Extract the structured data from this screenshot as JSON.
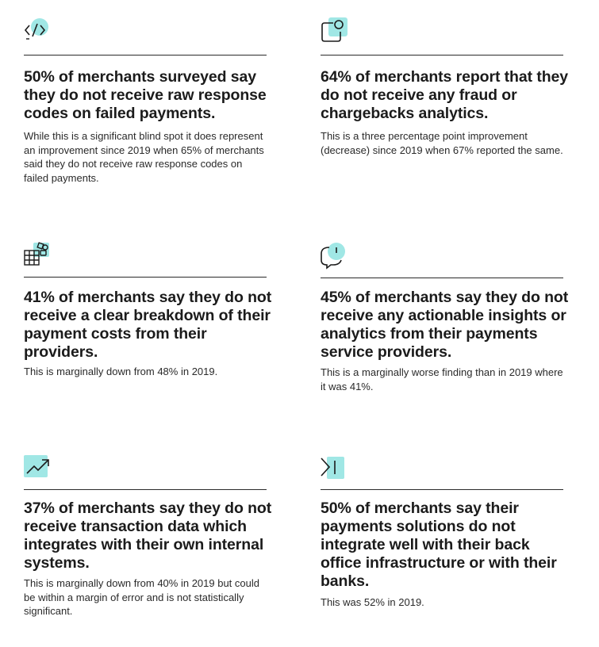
{
  "cards": [
    {
      "icon": "code-icon",
      "headline": "50% of merchants surveyed say they do not receive raw response codes on failed payments.",
      "body": "While this is a significant blind spot it does represent an improvement since 2019 when 65% of merchants said they do not receive raw response codes on failed payments."
    },
    {
      "icon": "notification-window-icon",
      "headline": "64% of merchants report that they do not receive any fraud or chargebacks analytics.",
      "body": "This is a three percentage point improvement (decrease) since 2019 when 67% reported the same."
    },
    {
      "icon": "grid-shapes-icon",
      "headline": "41% of merchants say they do not receive a clear breakdown of their payment costs from their providers.",
      "body": "This is marginally down from 48% in 2019."
    },
    {
      "icon": "speech-bubble-alert-icon",
      "headline": "45% of merchants say they do not receive any actionable insights or analytics from their payments service providers.",
      "body": "This is a marginally worse finding than in 2019 where it was 41%."
    },
    {
      "icon": "trend-up-icon",
      "headline": "37% of merchants say they do not receive transaction data which integrates with their own internal systems.",
      "body": "This is marginally down from 40% in 2019 but could be within a margin of error and is not statistically significant."
    },
    {
      "icon": "arrow-to-bar-icon",
      "headline": "50% of merchants say their payments solutions do not integrate well with their back office infrastructure or with their banks.",
      "body": "This was 52% in 2019."
    }
  ],
  "colors": {
    "accent": "#8fe3e0",
    "text": "#1b1b1b",
    "rule": "#2a2a2a"
  }
}
